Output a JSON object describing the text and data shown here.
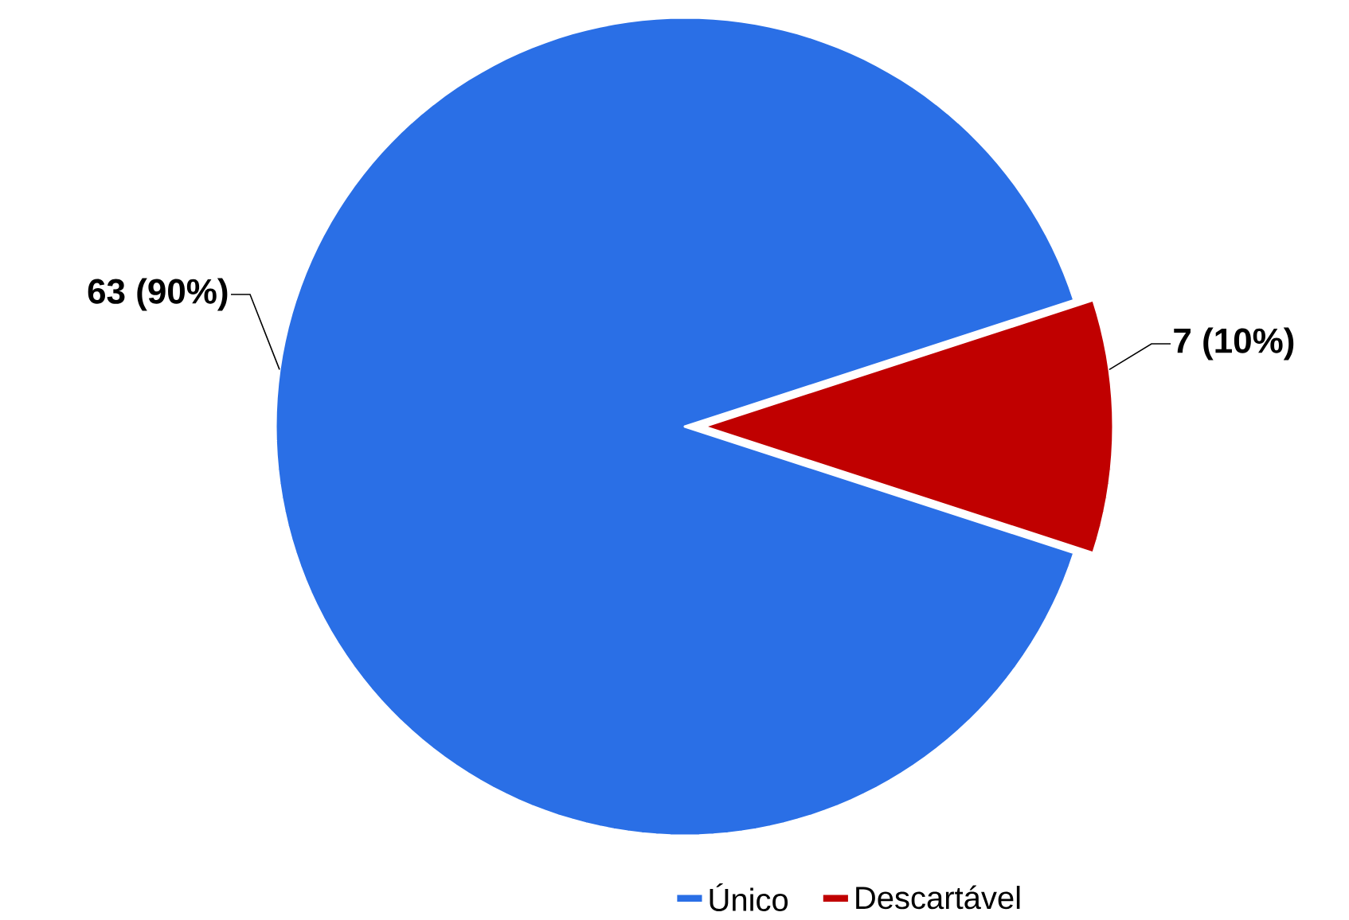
{
  "chart_data": {
    "type": "pie",
    "categories": [
      "Único",
      "Descartável"
    ],
    "values": [
      63,
      7
    ],
    "colors": [
      "#2a6fe6",
      "#c00000"
    ],
    "value_labels": [
      "63 (90%)",
      "7 (10%)"
    ],
    "legend": "bottom"
  }
}
